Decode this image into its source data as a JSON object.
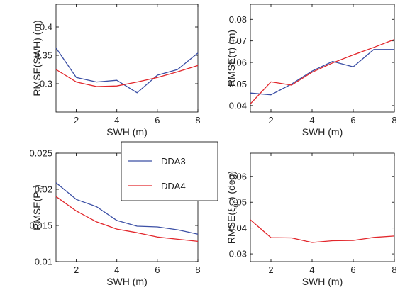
{
  "figure": {
    "legend": {
      "entries": [
        "DDA3",
        "DDA4"
      ]
    }
  },
  "colors": {
    "DDA3": "#3b4fa5",
    "DDA4": "#e2262b"
  },
  "chart_data": [
    {
      "type": "line",
      "xlabel": "SWH (m)",
      "ylabel": "RMSE(SWH) (m)",
      "ylabel_parts": {
        "pre": "RMSE(SWH) (m)",
        "sub": "",
        "post": ""
      },
      "xlim": [
        1,
        8
      ],
      "ylim": [
        0.25,
        0.44
      ],
      "xticks": [
        2,
        4,
        6,
        8
      ],
      "yticks": [
        0.3,
        0.35,
        0.4
      ],
      "ytick_labels": [
        "0.3",
        "0.35",
        "0.4"
      ],
      "x": [
        1,
        2,
        3,
        4,
        5,
        6,
        7,
        8
      ],
      "series": [
        {
          "name": "DDA3",
          "values": [
            0.363,
            0.311,
            0.303,
            0.306,
            0.284,
            0.315,
            0.325,
            0.354
          ]
        },
        {
          "name": "DDA4",
          "values": [
            0.325,
            0.303,
            0.295,
            0.296,
            0.303,
            0.311,
            0.321,
            0.332
          ]
        }
      ]
    },
    {
      "type": "line",
      "xlabel": "SWH (m)",
      "ylabel": "RMSE(τ) (m)",
      "ylabel_parts": {
        "pre": "RMSE(τ) (m)",
        "sub": "",
        "post": ""
      },
      "xlim": [
        1,
        8
      ],
      "ylim": [
        0.037,
        0.087
      ],
      "xticks": [
        2,
        4,
        6,
        8
      ],
      "yticks": [
        0.04,
        0.05,
        0.06,
        0.07,
        0.08
      ],
      "ytick_labels": [
        "0.04",
        "0.05",
        "0.06",
        "0.07",
        "0.08"
      ],
      "x": [
        1,
        2,
        3,
        4,
        5,
        6,
        7,
        8
      ],
      "series": [
        {
          "name": "DDA3",
          "values": [
            0.0458,
            0.045,
            0.05,
            0.056,
            0.0605,
            0.058,
            0.066,
            0.066
          ]
        },
        {
          "name": "DDA4",
          "values": [
            0.0408,
            0.051,
            0.0495,
            0.0555,
            0.0598,
            0.0635,
            0.067,
            0.0707
          ]
        }
      ]
    },
    {
      "type": "line",
      "xlabel": "SWH (m)",
      "ylabel": "RMSE(P_u)",
      "ylabel_parts": {
        "pre": "RMSE(P",
        "sub": "u",
        "post": ")"
      },
      "xlim": [
        1,
        8
      ],
      "ylim": [
        0.01,
        0.025
      ],
      "xticks": [
        2,
        4,
        6,
        8
      ],
      "yticks": [
        0.01,
        0.015,
        0.02,
        0.025
      ],
      "ytick_labels": [
        "0.01",
        "0.015",
        "0.02",
        "0.025"
      ],
      "x": [
        1,
        2,
        3,
        4,
        5,
        6,
        7,
        8
      ],
      "series": [
        {
          "name": "DDA3",
          "values": [
            0.0209,
            0.0186,
            0.0176,
            0.0157,
            0.0149,
            0.0148,
            0.0144,
            0.0138
          ]
        },
        {
          "name": "DDA4",
          "values": [
            0.019,
            0.017,
            0.0155,
            0.0145,
            0.014,
            0.0134,
            0.0131,
            0.0128
          ]
        }
      ]
    },
    {
      "type": "line",
      "xlabel": "SWH (m)",
      "ylabel": "RMSE(ξ_ac) (deg)",
      "ylabel_parts": {
        "pre": "RMSE(ξ",
        "sub": "ac",
        "post": ") (deg)"
      },
      "xlim": [
        1,
        8
      ],
      "ylim": [
        0.027,
        0.069
      ],
      "xticks": [
        2,
        4,
        6,
        8
      ],
      "yticks": [
        0.03,
        0.04,
        0.05,
        0.06
      ],
      "ytick_labels": [
        "0.03",
        "0.04",
        "0.05",
        "0.06"
      ],
      "x": [
        1,
        2,
        3,
        4,
        5,
        6,
        7,
        8
      ],
      "series": [
        {
          "name": "DDA4",
          "values": [
            0.0432,
            0.0363,
            0.0362,
            0.0344,
            0.0351,
            0.0352,
            0.0364,
            0.0369
          ]
        }
      ]
    }
  ]
}
